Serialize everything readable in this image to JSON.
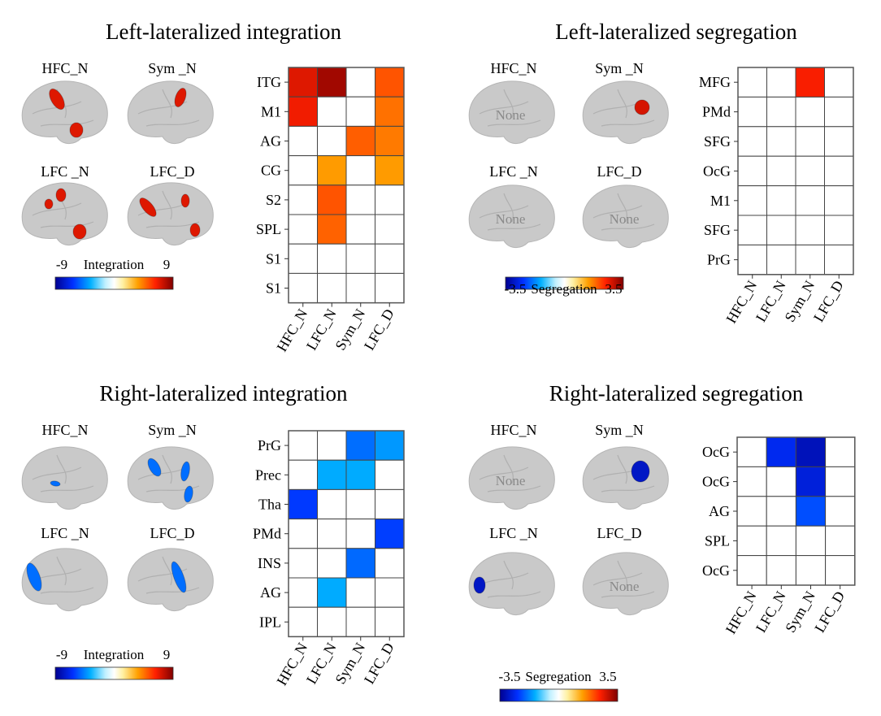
{
  "colorscale": {
    "stops": [
      [
        -1,
        "#000090"
      ],
      [
        -0.7,
        "#0030ff"
      ],
      [
        -0.4,
        "#00b0ff"
      ],
      [
        -0.15,
        "#c0f0ff"
      ],
      [
        0,
        "#ffffff"
      ],
      [
        0.15,
        "#fff0a0"
      ],
      [
        0.4,
        "#ffa000"
      ],
      [
        0.7,
        "#ff2000"
      ],
      [
        1,
        "#800000"
      ]
    ]
  },
  "chart_data": [
    {
      "type": "heatmap",
      "title": "Left-lateralized integration",
      "colorbar": {
        "label": "Integration",
        "min": -9,
        "max": 9,
        "min_label": "-9",
        "max_label": "9"
      },
      "brain_labels": [
        "HFC_N",
        "Sym _N",
        "LFC _N",
        "LFC_D"
      ],
      "brain_none": [
        false,
        false,
        false,
        false
      ],
      "columns": [
        "HFC_N",
        "LFC_N",
        "Sym_N",
        "LFC_D"
      ],
      "rows": [
        "ITG",
        "M1",
        "AG",
        "CG",
        "S2",
        "SPL",
        "S1",
        "S1"
      ],
      "values": [
        [
          7.0,
          8.3,
          null,
          5.2
        ],
        [
          6.6,
          null,
          null,
          4.6
        ],
        [
          null,
          null,
          5.0,
          4.4
        ],
        [
          null,
          3.7,
          null,
          3.7
        ],
        [
          null,
          5.2,
          null,
          null
        ],
        [
          null,
          4.9,
          null,
          null
        ],
        [
          null,
          null,
          null,
          null
        ],
        [
          null,
          null,
          null,
          null
        ]
      ]
    },
    {
      "type": "heatmap",
      "title": "Left-lateralized segregation",
      "colorbar": {
        "label": "Segregation",
        "min": -3.5,
        "max": 3.5,
        "min_label": "-3.5",
        "max_label": "3.5"
      },
      "brain_labels": [
        "HFC_N",
        "Sym _N",
        "LFC _N",
        "LFC_D"
      ],
      "brain_none": [
        true,
        false,
        true,
        true
      ],
      "none_label": "None",
      "columns": [
        "HFC_N",
        "LFC_N",
        "Sym_N",
        "LFC_D"
      ],
      "rows": [
        "MFG",
        "PMd",
        "SFG",
        "OcG",
        "M1",
        "SFG",
        "PrG"
      ],
      "values": [
        [
          null,
          null,
          2.5,
          null
        ],
        [
          null,
          null,
          null,
          null
        ],
        [
          null,
          null,
          null,
          null
        ],
        [
          null,
          null,
          null,
          null
        ],
        [
          null,
          null,
          null,
          null
        ],
        [
          null,
          null,
          null,
          null
        ],
        [
          null,
          null,
          null,
          null
        ]
      ]
    },
    {
      "type": "heatmap",
      "title": "Right-lateralized integration",
      "colorbar": {
        "label": "Integration",
        "min": -9,
        "max": 9,
        "min_label": "-9",
        "max_label": "9"
      },
      "brain_labels": [
        "HFC_N",
        "Sym _N",
        "LFC _N",
        "LFC_D"
      ],
      "brain_none": [
        false,
        false,
        false,
        false
      ],
      "columns": [
        "HFC_N",
        "LFC_N",
        "Sym_N",
        "LFC_D"
      ],
      "rows": [
        "PrG",
        "Prec",
        "Tha",
        "PMd",
        "INS",
        "AG",
        "IPL"
      ],
      "values": [
        [
          null,
          null,
          -5.0,
          -4.1
        ],
        [
          null,
          -3.7,
          -3.7,
          null
        ],
        [
          -6.1,
          null,
          null,
          null
        ],
        [
          null,
          null,
          null,
          -6.0
        ],
        [
          null,
          null,
          -5.1,
          null
        ],
        [
          null,
          -3.7,
          null,
          null
        ],
        [
          null,
          null,
          null,
          null
        ]
      ]
    },
    {
      "type": "heatmap",
      "title": "Right-lateralized segregation",
      "colorbar": {
        "label": "Segregation",
        "min": -3.5,
        "max": 3.5,
        "min_label": "-3.5",
        "max_label": "3.5"
      },
      "brain_labels": [
        "HFC_N",
        "Sym _N",
        "LFC _N",
        "LFC_D"
      ],
      "brain_none": [
        true,
        false,
        false,
        true
      ],
      "none_label": "None",
      "columns": [
        "HFC_N",
        "LFC_N",
        "Sym_N",
        "LFC_D"
      ],
      "rows": [
        "OcG",
        "OcG",
        "AG",
        "SPL",
        "OcG"
      ],
      "values": [
        [
          null,
          -2.6,
          -3.1,
          null
        ],
        [
          null,
          null,
          -2.8,
          null
        ],
        [
          null,
          null,
          -2.2,
          null
        ],
        [
          null,
          null,
          null,
          null
        ],
        [
          null,
          null,
          null,
          null
        ]
      ]
    }
  ]
}
